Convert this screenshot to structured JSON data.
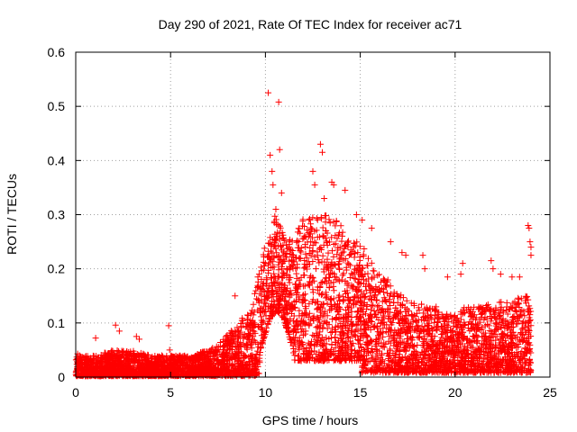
{
  "chart_data": {
    "type": "scatter",
    "title": "Day 290 of 2021, Rate Of TEC Index for receiver ac71",
    "xlabel": "GPS time / hours",
    "ylabel": "ROTI / TECUs",
    "xlim": [
      0,
      25
    ],
    "ylim": [
      0,
      0.6
    ],
    "xticks": [
      "0",
      "5",
      "10",
      "15",
      "20",
      "25"
    ],
    "yticks": [
      "0",
      "0.1",
      "0.2",
      "0.3",
      "0.4",
      "0.5",
      "0.6"
    ],
    "grid": true,
    "marker": "+",
    "color": "#ff0000",
    "envelope": {
      "description_hours": [
        0,
        1,
        2,
        3,
        4,
        5,
        6,
        7,
        7.5,
        8,
        8.5,
        9,
        9.5,
        10,
        10.5,
        11,
        11.5,
        12,
        12.5,
        13,
        13.5,
        14,
        14.5,
        15,
        15.5,
        16,
        16.5,
        17,
        17.5,
        18,
        18.5,
        19,
        19.5,
        20,
        20.5,
        21,
        21.5,
        22,
        22.5,
        23,
        23.5,
        24
      ],
      "upper_roti": [
        0.04,
        0.04,
        0.05,
        0.05,
        0.04,
        0.04,
        0.04,
        0.05,
        0.06,
        0.08,
        0.1,
        0.12,
        0.16,
        0.25,
        0.3,
        0.26,
        0.25,
        0.3,
        0.3,
        0.3,
        0.3,
        0.28,
        0.25,
        0.25,
        0.22,
        0.2,
        0.18,
        0.16,
        0.14,
        0.14,
        0.13,
        0.13,
        0.12,
        0.12,
        0.13,
        0.13,
        0.13,
        0.14,
        0.14,
        0.14,
        0.15,
        0.15
      ]
    },
    "points": [
      [
        0.1,
        0.043
      ],
      [
        1.05,
        0.072
      ],
      [
        2.1,
        0.096
      ],
      [
        2.3,
        0.085
      ],
      [
        3.2,
        0.075
      ],
      [
        3.35,
        0.07
      ],
      [
        4.9,
        0.095
      ],
      [
        4.95,
        0.05
      ],
      [
        8.4,
        0.15
      ],
      [
        9.6,
        0.185
      ],
      [
        10.15,
        0.525
      ],
      [
        10.25,
        0.41
      ],
      [
        10.35,
        0.38
      ],
      [
        10.4,
        0.355
      ],
      [
        10.7,
        0.508
      ],
      [
        10.75,
        0.42
      ],
      [
        10.85,
        0.34
      ],
      [
        10.55,
        0.31
      ],
      [
        12.5,
        0.38
      ],
      [
        12.6,
        0.355
      ],
      [
        12.9,
        0.43
      ],
      [
        13.0,
        0.415
      ],
      [
        13.1,
        0.33
      ],
      [
        13.5,
        0.36
      ],
      [
        13.6,
        0.355
      ],
      [
        14.2,
        0.345
      ],
      [
        14.8,
        0.3
      ],
      [
        15.1,
        0.29
      ],
      [
        15.6,
        0.275
      ],
      [
        16.6,
        0.25
      ],
      [
        17.2,
        0.23
      ],
      [
        17.4,
        0.225
      ],
      [
        18.3,
        0.225
      ],
      [
        18.4,
        0.2
      ],
      [
        19.6,
        0.185
      ],
      [
        20.3,
        0.19
      ],
      [
        20.4,
        0.21
      ],
      [
        21.9,
        0.215
      ],
      [
        22.0,
        0.2
      ],
      [
        22.4,
        0.19
      ],
      [
        23.0,
        0.185
      ],
      [
        23.4,
        0.185
      ],
      [
        23.85,
        0.28
      ],
      [
        23.9,
        0.275
      ],
      [
        23.95,
        0.25
      ],
      [
        24.0,
        0.24
      ],
      [
        24.0,
        0.225
      ]
    ]
  }
}
